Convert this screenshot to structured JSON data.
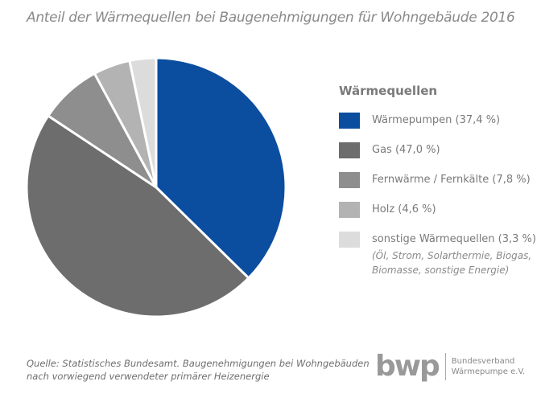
{
  "chart_data": {
    "type": "pie",
    "title": "Anteil der Wärmequellen bei Baugenehmigungen für Wohngebäude 2016",
    "legend_title": "Wärmequellen",
    "legend_placement": "right",
    "slices": [
      {
        "name": "Wärmepumpen (37,4 %)",
        "value": 37.4,
        "color": "#0b4d9f"
      },
      {
        "name": "Gas (47,0 %)",
        "value": 47.0,
        "color": "#6d6d6d"
      },
      {
        "name": "Fernwärme / Fernkälte (7,8 %)",
        "value": 7.8,
        "color": "#8e8e8e"
      },
      {
        "name": "Holz (4,6 %)",
        "value": 4.6,
        "color": "#b3b3b3"
      },
      {
        "name": "sonstige Wärmequellen (3,3 %)",
        "value": 3.3,
        "color": "#dcdcdc"
      }
    ],
    "note": "(Öl, Strom, Solarthermie, Biogas, Biomasse, sonstige Energie)"
  },
  "source": {
    "line1": "Quelle: Statistisches Bundesamt. Baugenehmigungen bei Wohngebäuden",
    "line2": "nach vorwiegend verwendeter primärer Heizenergie"
  },
  "logo": {
    "mark": "bwp",
    "line1": "Bundesverband",
    "line2": "Wärmepumpe e.V."
  }
}
